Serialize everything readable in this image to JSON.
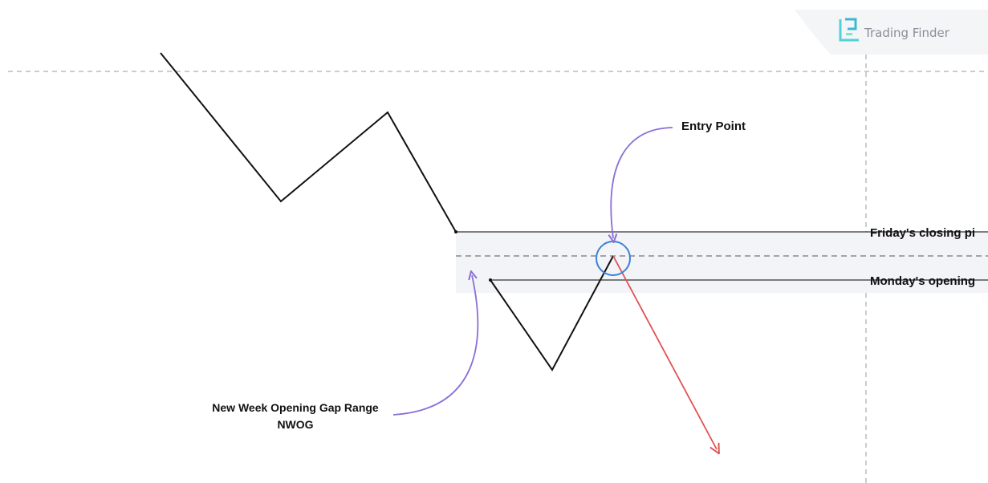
{
  "brand": {
    "name": "Trading Finder",
    "logo_icon": "trading-finder-logo-icon",
    "accent_color": "#4fd1d9"
  },
  "annotations": {
    "entry_point": "Entry Point",
    "friday_close": "Friday's closing pi",
    "monday_open": "Monday's opening",
    "nwog_line1": "New Week Opening Gap Range",
    "nwog_line2": "NWOG"
  },
  "colors": {
    "price_line": "#111111",
    "gap_zone": "#f3f4f7",
    "level_line": "#333333",
    "dashed_line": "#9a9a9a",
    "annotation_arrow": "#8a6fd6",
    "entry_circle": "#3b82d6",
    "move_arrow": "#e05252"
  }
}
